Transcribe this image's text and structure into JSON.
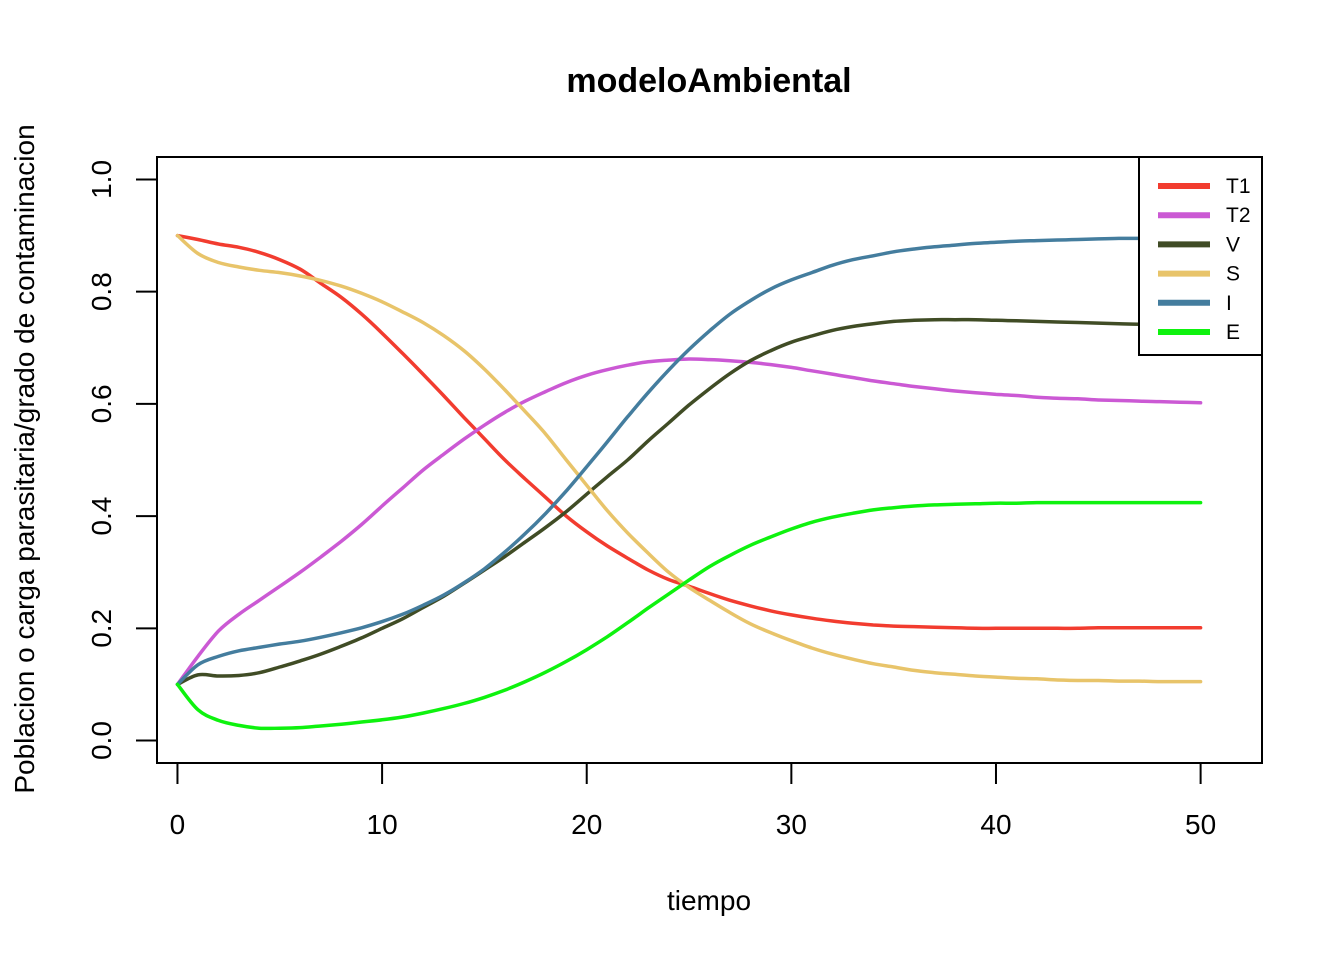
{
  "chart_data": {
    "type": "line",
    "title": "modeloAmbiental",
    "xlabel": "tiempo",
    "ylabel": "Poblacion o carga parasitaria/grado de contaminacion",
    "xlim": [
      -1,
      53
    ],
    "ylim": [
      -0.04,
      1.04
    ],
    "xticks": [
      0,
      10,
      20,
      30,
      40,
      50
    ],
    "yticks": [
      0.0,
      0.2,
      0.4,
      0.6,
      0.8,
      1.0
    ],
    "xtick_labels": [
      "0",
      "10",
      "20",
      "30",
      "40",
      "50"
    ],
    "ytick_labels": [
      "0.0",
      "0.2",
      "0.4",
      "0.6",
      "0.8",
      "1.0"
    ],
    "grid": false,
    "legend_position": "top-right",
    "x": [
      0,
      1,
      2,
      3,
      4,
      5,
      6,
      7,
      8,
      9,
      10,
      11,
      12,
      13,
      14,
      15,
      16,
      17,
      18,
      19,
      20,
      21,
      22,
      23,
      24,
      25,
      26,
      27,
      28,
      29,
      30,
      31,
      32,
      33,
      34,
      35,
      36,
      37,
      38,
      39,
      40,
      41,
      42,
      43,
      44,
      45,
      46,
      47,
      48,
      49,
      50
    ],
    "series": [
      {
        "name": "T1",
        "color": "#f23c2f",
        "values": [
          0.9,
          0.893,
          0.885,
          0.879,
          0.87,
          0.857,
          0.84,
          0.815,
          0.79,
          0.76,
          0.726,
          0.69,
          0.653,
          0.615,
          0.576,
          0.538,
          0.5,
          0.466,
          0.433,
          0.4,
          0.372,
          0.347,
          0.325,
          0.304,
          0.287,
          0.275,
          0.262,
          0.25,
          0.24,
          0.231,
          0.224,
          0.218,
          0.213,
          0.209,
          0.206,
          0.204,
          0.203,
          0.202,
          0.201,
          0.2,
          0.2,
          0.2,
          0.2,
          0.2,
          0.2,
          0.201,
          0.201,
          0.201,
          0.201,
          0.201,
          0.201
        ]
      },
      {
        "name": "T2",
        "color": "#cb59d4",
        "values": [
          0.1,
          0.15,
          0.195,
          0.225,
          0.25,
          0.275,
          0.3,
          0.327,
          0.355,
          0.385,
          0.418,
          0.45,
          0.482,
          0.51,
          0.537,
          0.562,
          0.585,
          0.605,
          0.622,
          0.638,
          0.651,
          0.661,
          0.669,
          0.675,
          0.678,
          0.68,
          0.679,
          0.677,
          0.674,
          0.67,
          0.665,
          0.659,
          0.653,
          0.647,
          0.641,
          0.636,
          0.631,
          0.627,
          0.623,
          0.62,
          0.617,
          0.615,
          0.612,
          0.61,
          0.609,
          0.607,
          0.606,
          0.605,
          0.604,
          0.603,
          0.602
        ]
      },
      {
        "name": "V",
        "color": "#404c25",
        "values": [
          0.1,
          0.117,
          0.115,
          0.116,
          0.121,
          0.131,
          0.142,
          0.154,
          0.168,
          0.183,
          0.2,
          0.217,
          0.237,
          0.257,
          0.28,
          0.304,
          0.328,
          0.354,
          0.38,
          0.408,
          0.439,
          0.47,
          0.5,
          0.534,
          0.566,
          0.598,
          0.627,
          0.654,
          0.677,
          0.695,
          0.71,
          0.721,
          0.731,
          0.738,
          0.743,
          0.747,
          0.749,
          0.75,
          0.75,
          0.75,
          0.749,
          0.748,
          0.747,
          0.746,
          0.745,
          0.744,
          0.743,
          0.742,
          0.741,
          0.741,
          0.74
        ]
      },
      {
        "name": "S",
        "color": "#e8c46a",
        "values": [
          0.9,
          0.868,
          0.852,
          0.844,
          0.838,
          0.834,
          0.828,
          0.82,
          0.81,
          0.797,
          0.782,
          0.764,
          0.745,
          0.722,
          0.695,
          0.662,
          0.625,
          0.586,
          0.546,
          0.5,
          0.455,
          0.41,
          0.37,
          0.334,
          0.3,
          0.273,
          0.25,
          0.228,
          0.208,
          0.192,
          0.178,
          0.165,
          0.154,
          0.145,
          0.137,
          0.131,
          0.125,
          0.121,
          0.118,
          0.115,
          0.113,
          0.111,
          0.11,
          0.108,
          0.107,
          0.107,
          0.106,
          0.106,
          0.105,
          0.105,
          0.105
        ]
      },
      {
        "name": "I",
        "color": "#447d9e",
        "values": [
          0.1,
          0.135,
          0.15,
          0.16,
          0.166,
          0.172,
          0.177,
          0.184,
          0.192,
          0.201,
          0.212,
          0.225,
          0.241,
          0.259,
          0.281,
          0.306,
          0.336,
          0.369,
          0.405,
          0.445,
          0.488,
          0.532,
          0.577,
          0.62,
          0.66,
          0.697,
          0.73,
          0.76,
          0.784,
          0.805,
          0.821,
          0.834,
          0.847,
          0.857,
          0.864,
          0.871,
          0.876,
          0.88,
          0.883,
          0.886,
          0.888,
          0.89,
          0.891,
          0.892,
          0.893,
          0.894,
          0.895,
          0.895,
          0.896,
          0.896,
          0.896
        ]
      },
      {
        "name": "E",
        "color": "#0ef20e",
        "values": [
          0.1,
          0.055,
          0.036,
          0.027,
          0.022,
          0.022,
          0.023,
          0.026,
          0.029,
          0.033,
          0.037,
          0.042,
          0.049,
          0.057,
          0.066,
          0.077,
          0.09,
          0.105,
          0.122,
          0.141,
          0.162,
          0.185,
          0.21,
          0.236,
          0.261,
          0.286,
          0.31,
          0.33,
          0.348,
          0.363,
          0.377,
          0.389,
          0.398,
          0.405,
          0.411,
          0.415,
          0.418,
          0.42,
          0.421,
          0.422,
          0.423,
          0.423,
          0.424,
          0.424,
          0.424,
          0.424,
          0.424,
          0.424,
          0.424,
          0.424,
          0.424
        ]
      }
    ]
  }
}
